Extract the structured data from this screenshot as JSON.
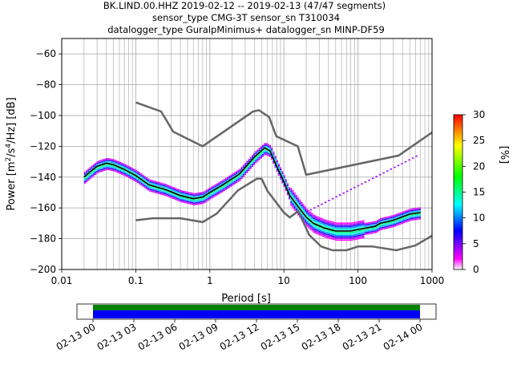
{
  "title_lines": [
    "BK.LIND.00.HHZ   2019-02-12 -- 2019-02-13  (47/47 segments)",
    "sensor_type CMG-3T sensor_sn T310034",
    "datalogger_type GuralpMinimus+ datalogger_sn MINP-DF59"
  ],
  "chart_data": {
    "type": "heatmap",
    "xlabel": "Period [s]",
    "ylabel_prefix": "Power [m",
    "ylabel_sup1": "2",
    "ylabel_mid": "/s",
    "ylabel_sup2": "4",
    "ylabel_suffix": "/Hz] [dB]",
    "x_scale": "log",
    "xlim": [
      0.01,
      1000
    ],
    "ylim": [
      -200,
      -50
    ],
    "x_ticks": [
      0.01,
      0.1,
      1,
      10,
      100,
      1000
    ],
    "x_tick_labels": [
      "0.01",
      "0.1",
      "1",
      "10",
      "100",
      "1000"
    ],
    "y_ticks": [
      -200,
      -180,
      -160,
      -140,
      -120,
      -100,
      -80,
      -60
    ],
    "y_tick_labels": [
      "−200",
      "−180",
      "−160",
      "−140",
      "−120",
      "−100",
      "−80",
      "−60"
    ],
    "grid": true,
    "colorbar": {
      "label": "[%]",
      "range": [
        0,
        30
      ],
      "ticks": [
        0,
        5,
        10,
        15,
        20,
        25,
        30
      ],
      "tick_labels": [
        "0",
        "5",
        "10",
        "15",
        "20",
        "25",
        "30"
      ],
      "colormap": [
        "#ffffff",
        "#ff00ff",
        "#0000ff",
        "#00ffff",
        "#00ff00",
        "#ffff00",
        "#ff0000"
      ]
    },
    "noise_model_color": "#666666",
    "mode_color": "#000000",
    "high_noise_model": [
      [
        0.1,
        -91.5
      ],
      [
        0.22,
        -97.4
      ],
      [
        0.32,
        -110.5
      ],
      [
        0.8,
        -120
      ],
      [
        3.8,
        -97.5
      ],
      [
        4.6,
        -96.5
      ],
      [
        6.3,
        -101
      ],
      [
        7.9,
        -113.5
      ],
      [
        15.4,
        -120
      ],
      [
        20,
        -138.5
      ],
      [
        354.8,
        -126
      ],
      [
        1000,
        -111
      ]
    ],
    "low_noise_model": [
      [
        0.1,
        -168
      ],
      [
        0.17,
        -166.7
      ],
      [
        0.4,
        -166.7
      ],
      [
        0.8,
        -169.2
      ],
      [
        1.24,
        -163.7
      ],
      [
        2.4,
        -148.6
      ],
      [
        4.3,
        -141.1
      ],
      [
        5,
        -141.1
      ],
      [
        6,
        -149
      ],
      [
        10,
        -163
      ],
      [
        12,
        -166.2
      ],
      [
        15.6,
        -162.1
      ],
      [
        21.9,
        -177.5
      ],
      [
        31.6,
        -185
      ],
      [
        45,
        -187.5
      ],
      [
        70,
        -187.5
      ],
      [
        101,
        -185
      ],
      [
        154,
        -185
      ],
      [
        328,
        -187.5
      ],
      [
        600,
        -184.4
      ],
      [
        1000,
        -178
      ]
    ],
    "mode_curve": [
      [
        0.02,
        -140
      ],
      [
        0.025,
        -136
      ],
      [
        0.03,
        -133
      ],
      [
        0.04,
        -131
      ],
      [
        0.05,
        -132
      ],
      [
        0.07,
        -135
      ],
      [
        0.1,
        -139
      ],
      [
        0.15,
        -145
      ],
      [
        0.25,
        -148
      ],
      [
        0.4,
        -152
      ],
      [
        0.6,
        -154
      ],
      [
        0.8,
        -153
      ],
      [
        1.0,
        -150
      ],
      [
        1.5,
        -145
      ],
      [
        2.5,
        -138
      ],
      [
        4.0,
        -127
      ],
      [
        5.5,
        -121
      ],
      [
        6.5,
        -123
      ],
      [
        8.0,
        -133
      ],
      [
        10,
        -143
      ],
      [
        12,
        -152
      ],
      [
        16,
        -160
      ],
      [
        20,
        -166
      ],
      [
        25,
        -170
      ],
      [
        35,
        -173
      ],
      [
        50,
        -175
      ],
      [
        80,
        -175
      ],
      [
        100,
        -174
      ],
      [
        130,
        -173
      ],
      [
        170,
        -172
      ],
      [
        200,
        -170
      ],
      [
        250,
        -169
      ],
      [
        300,
        -168
      ],
      [
        500,
        -164
      ],
      [
        700,
        -163
      ]
    ],
    "time_axis": {
      "ticks": [
        "02-13 00",
        "02-13 03",
        "02-13 06",
        "02-13 09",
        "02-13 12",
        "02-13 15",
        "02-13 18",
        "02-13 21",
        "02-14 00"
      ],
      "data_color": "#0000ff",
      "coverage_color": "#008000"
    }
  }
}
